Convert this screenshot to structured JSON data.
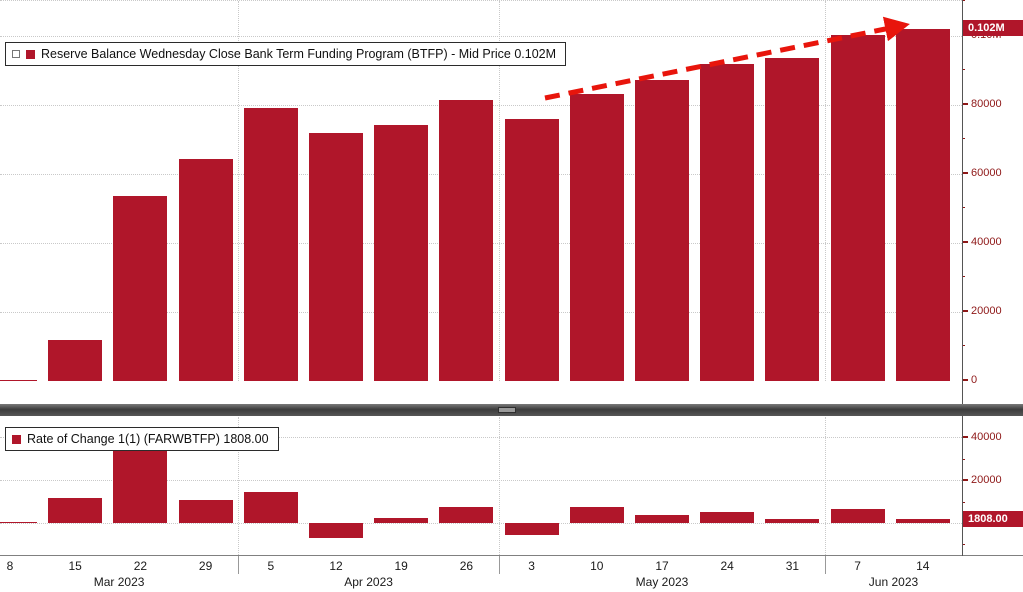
{
  "colors": {
    "bar": "#b0162a",
    "arrow": "#e8150c",
    "axis_text": "#8e1717",
    "x_axis_text": "#1a1a1a",
    "badge_bg": "#b0162a",
    "badge_text": "#ffffff",
    "grid": "#c9c9c9"
  },
  "legend_top": {
    "label": "Reserve Balance Wednesday Close Bank Term Funding Program (BTFP) - Mid Price 0.102M"
  },
  "legend_bottom": {
    "label": "Rate of Change 1(1) (FARWBTFP) 1808.00"
  },
  "chart_data": [
    {
      "type": "bar",
      "title": "Reserve Balance Wednesday Close Bank Term Funding Program (BTFP) - Mid Price 0.102M",
      "categories": [
        "8",
        "15",
        "22",
        "29",
        "5",
        "12",
        "19",
        "26",
        "3",
        "10",
        "17",
        "24",
        "31",
        "7",
        "14"
      ],
      "values": [
        400,
        11943,
        53669,
        64403,
        79021,
        71837,
        74032,
        81327,
        75778,
        83101,
        87006,
        91907,
        93615,
        100161,
        101969
      ],
      "ylim": [
        0,
        110000
      ],
      "yticks": [
        {
          "value": 0,
          "label": "0"
        },
        {
          "value": 20000,
          "label": "20000"
        },
        {
          "value": 40000,
          "label": "40000"
        },
        {
          "value": 60000,
          "label": "60000"
        },
        {
          "value": 80000,
          "label": "80000"
        },
        {
          "value": 100000,
          "label": "0.10M"
        }
      ],
      "minor_tick_step": 10000,
      "badge": {
        "value": 102000,
        "label": "0.102M"
      },
      "grid": true,
      "legend_position": "top-left"
    },
    {
      "type": "bar",
      "title": "Rate of Change 1(1) (FARWBTFP) 1808.00",
      "categories": [
        "8",
        "15",
        "22",
        "29",
        "5",
        "12",
        "19",
        "26",
        "3",
        "10",
        "17",
        "24",
        "31",
        "7",
        "14"
      ],
      "values": [
        400,
        11543,
        41726,
        10734,
        14618,
        -7184,
        2195,
        7295,
        -5549,
        7323,
        3905,
        4901,
        1708,
        6546,
        1808
      ],
      "ylim": [
        -15000,
        49500
      ],
      "yticks": [
        {
          "value": 0,
          "label": "0"
        },
        {
          "value": 20000,
          "label": "20000"
        },
        {
          "value": 40000,
          "label": "40000"
        }
      ],
      "minor_tick_step": 10000,
      "badge": {
        "value": 1808,
        "label": "1808.00"
      },
      "grid": true,
      "legend_position": "top-left"
    }
  ],
  "x_axis": {
    "tick_labels": [
      "8",
      "15",
      "22",
      "29",
      "5",
      "12",
      "19",
      "26",
      "3",
      "10",
      "17",
      "24",
      "31",
      "7",
      "14"
    ],
    "months": [
      {
        "label": "Mar 2023",
        "from": 0,
        "to": 3
      },
      {
        "label": "Apr 2023",
        "from": 4,
        "to": 7
      },
      {
        "label": "May 2023",
        "from": 8,
        "to": 12
      },
      {
        "label": "Jun 2023",
        "from": 13,
        "to": 14
      }
    ]
  }
}
